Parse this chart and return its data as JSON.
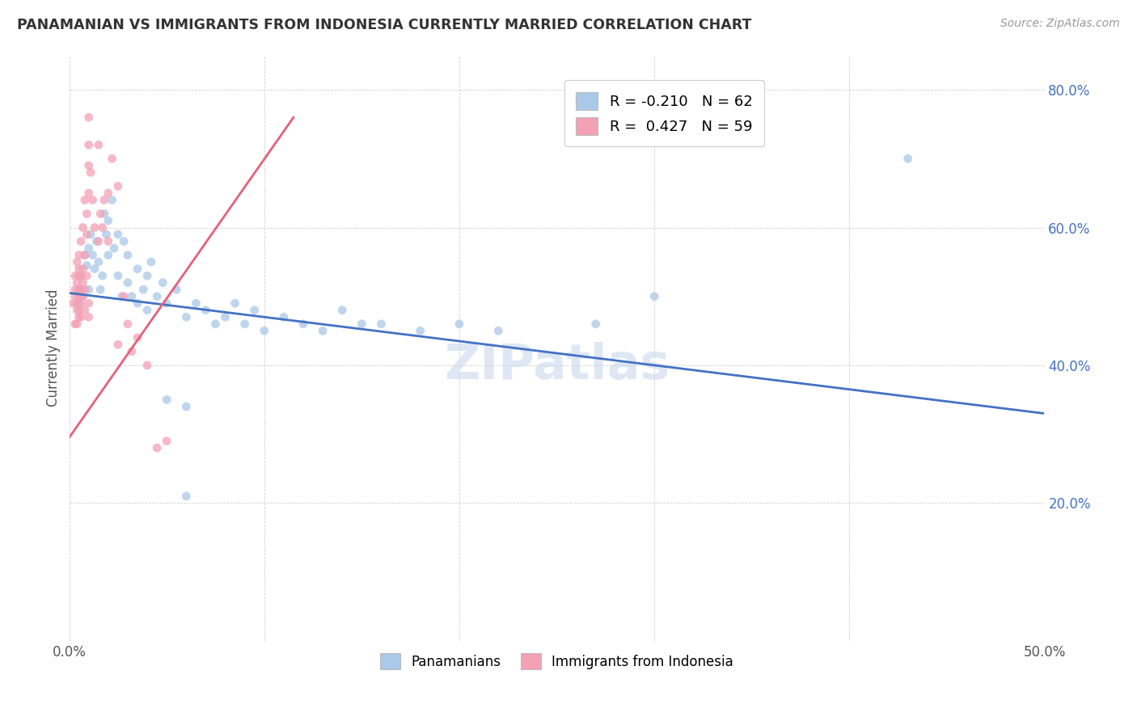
{
  "title": "PANAMANIAN VS IMMIGRANTS FROM INDONESIA CURRENTLY MARRIED CORRELATION CHART",
  "source": "Source: ZipAtlas.com",
  "ylabel": "Currently Married",
  "xlim": [
    0.0,
    0.5
  ],
  "ylim": [
    0.0,
    0.85
  ],
  "watermark": "ZIPatlas",
  "panamanian_color": "#aac8e8",
  "indonesia_color": "#f4a0b5",
  "panamanian_trend_color": "#4472c4",
  "indonesia_trend_color": "#e8607a",
  "panamanian_R": -0.21,
  "panamanian_N": 62,
  "indonesia_R": 0.427,
  "indonesia_N": 59,
  "pan_trend_x0": 0.0,
  "pan_trend_y0": 0.505,
  "pan_trend_x1": 0.5,
  "pan_trend_y1": 0.33,
  "ind_trend_x0": 0.0,
  "ind_trend_y0": 0.295,
  "ind_trend_x1": 0.115,
  "ind_trend_y1": 0.76,
  "panamanian_points": [
    [
      0.005,
      0.51
    ],
    [
      0.005,
      0.49
    ],
    [
      0.006,
      0.53
    ],
    [
      0.007,
      0.5
    ],
    [
      0.008,
      0.56
    ],
    [
      0.009,
      0.545
    ],
    [
      0.01,
      0.57
    ],
    [
      0.01,
      0.51
    ],
    [
      0.011,
      0.59
    ],
    [
      0.012,
      0.56
    ],
    [
      0.013,
      0.54
    ],
    [
      0.014,
      0.58
    ],
    [
      0.015,
      0.55
    ],
    [
      0.016,
      0.51
    ],
    [
      0.017,
      0.53
    ],
    [
      0.018,
      0.62
    ],
    [
      0.019,
      0.59
    ],
    [
      0.02,
      0.61
    ],
    [
      0.02,
      0.56
    ],
    [
      0.022,
      0.64
    ],
    [
      0.023,
      0.57
    ],
    [
      0.025,
      0.59
    ],
    [
      0.025,
      0.53
    ],
    [
      0.027,
      0.5
    ],
    [
      0.028,
      0.58
    ],
    [
      0.03,
      0.56
    ],
    [
      0.03,
      0.52
    ],
    [
      0.032,
      0.5
    ],
    [
      0.035,
      0.54
    ],
    [
      0.035,
      0.49
    ],
    [
      0.038,
      0.51
    ],
    [
      0.04,
      0.53
    ],
    [
      0.04,
      0.48
    ],
    [
      0.042,
      0.55
    ],
    [
      0.045,
      0.5
    ],
    [
      0.048,
      0.52
    ],
    [
      0.05,
      0.49
    ],
    [
      0.055,
      0.51
    ],
    [
      0.06,
      0.47
    ],
    [
      0.065,
      0.49
    ],
    [
      0.07,
      0.48
    ],
    [
      0.075,
      0.46
    ],
    [
      0.08,
      0.47
    ],
    [
      0.085,
      0.49
    ],
    [
      0.09,
      0.46
    ],
    [
      0.095,
      0.48
    ],
    [
      0.1,
      0.45
    ],
    [
      0.11,
      0.47
    ],
    [
      0.12,
      0.46
    ],
    [
      0.13,
      0.45
    ],
    [
      0.14,
      0.48
    ],
    [
      0.15,
      0.46
    ],
    [
      0.16,
      0.46
    ],
    [
      0.18,
      0.45
    ],
    [
      0.2,
      0.46
    ],
    [
      0.22,
      0.45
    ],
    [
      0.05,
      0.35
    ],
    [
      0.06,
      0.34
    ],
    [
      0.06,
      0.21
    ],
    [
      0.27,
      0.46
    ],
    [
      0.3,
      0.5
    ],
    [
      0.43,
      0.7
    ]
  ],
  "indonesia_points": [
    [
      0.002,
      0.49
    ],
    [
      0.003,
      0.51
    ],
    [
      0.003,
      0.53
    ],
    [
      0.003,
      0.46
    ],
    [
      0.003,
      0.5
    ],
    [
      0.004,
      0.48
    ],
    [
      0.004,
      0.52
    ],
    [
      0.004,
      0.55
    ],
    [
      0.004,
      0.46
    ],
    [
      0.004,
      0.49
    ],
    [
      0.005,
      0.48
    ],
    [
      0.005,
      0.51
    ],
    [
      0.005,
      0.53
    ],
    [
      0.005,
      0.47
    ],
    [
      0.005,
      0.5
    ],
    [
      0.005,
      0.54
    ],
    [
      0.005,
      0.56
    ],
    [
      0.006,
      0.49
    ],
    [
      0.006,
      0.51
    ],
    [
      0.006,
      0.53
    ],
    [
      0.006,
      0.47
    ],
    [
      0.006,
      0.58
    ],
    [
      0.007,
      0.5
    ],
    [
      0.007,
      0.52
    ],
    [
      0.007,
      0.6
    ],
    [
      0.007,
      0.54
    ],
    [
      0.008,
      0.48
    ],
    [
      0.008,
      0.56
    ],
    [
      0.008,
      0.64
    ],
    [
      0.008,
      0.51
    ],
    [
      0.009,
      0.59
    ],
    [
      0.009,
      0.62
    ],
    [
      0.009,
      0.53
    ],
    [
      0.01,
      0.72
    ],
    [
      0.01,
      0.76
    ],
    [
      0.01,
      0.69
    ],
    [
      0.01,
      0.65
    ],
    [
      0.01,
      0.49
    ],
    [
      0.01,
      0.47
    ],
    [
      0.011,
      0.68
    ],
    [
      0.012,
      0.64
    ],
    [
      0.013,
      0.6
    ],
    [
      0.015,
      0.58
    ],
    [
      0.015,
      0.72
    ],
    [
      0.016,
      0.62
    ],
    [
      0.017,
      0.6
    ],
    [
      0.018,
      0.64
    ],
    [
      0.02,
      0.58
    ],
    [
      0.02,
      0.65
    ],
    [
      0.022,
      0.7
    ],
    [
      0.025,
      0.66
    ],
    [
      0.025,
      0.43
    ],
    [
      0.028,
      0.5
    ],
    [
      0.03,
      0.46
    ],
    [
      0.032,
      0.42
    ],
    [
      0.035,
      0.44
    ],
    [
      0.04,
      0.4
    ],
    [
      0.045,
      0.28
    ],
    [
      0.05,
      0.29
    ]
  ]
}
